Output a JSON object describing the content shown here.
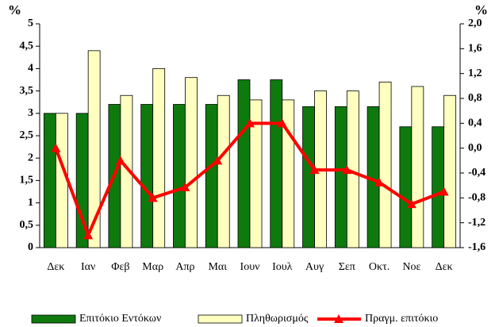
{
  "chart_data": {
    "type": "bar",
    "ylabel": "%",
    "y2label": "%",
    "categories": [
      "Δεκ",
      "Ιαν",
      "Φεβ",
      "Μαρ",
      "Απρ",
      "Μαι",
      "Ιουν",
      "Ιουλ",
      "Αυγ",
      "Σεπ",
      "Οκτ.",
      "Νοε",
      "Δεκ"
    ],
    "series": [
      {
        "name": "Επιτόκιο Εντόκων",
        "color": "#0e7a0e",
        "values": [
          3.0,
          3.0,
          3.2,
          3.2,
          3.2,
          3.2,
          3.75,
          3.75,
          3.15,
          3.15,
          3.15,
          2.7,
          2.7
        ]
      },
      {
        "name": "Πληθωρισμός",
        "color": "#ffffc0",
        "values": [
          3.0,
          4.4,
          3.4,
          4.0,
          3.8,
          3.4,
          3.3,
          3.3,
          3.5,
          3.5,
          3.7,
          3.6,
          3.4
        ]
      },
      {
        "name": "Πραγμ. επιτόκιο",
        "color": "#ff0000",
        "type": "line",
        "axis": "y2",
        "values": [
          0.0,
          -1.4,
          -0.2,
          -0.8,
          -0.63,
          -0.2,
          0.4,
          0.4,
          -0.35,
          -0.35,
          -0.55,
          -0.9,
          -0.7
        ]
      }
    ],
    "ylim": [
      0,
      5
    ],
    "yticks": [
      0,
      {
        "value": 0.5,
        "label": "0,5"
      },
      1,
      {
        "value": 1.5,
        "label": "1,5"
      },
      2,
      {
        "value": 2.5,
        "label": "2,5"
      },
      3,
      {
        "value": 3.5,
        "label": "3,5"
      },
      4,
      {
        "value": 4.5,
        "label": "4,5"
      },
      5
    ],
    "y2lim": [
      -1.6,
      2.0
    ],
    "y2ticks": [
      {
        "value": -1.6,
        "label": "-1,6"
      },
      {
        "value": -1.2,
        "label": "-1,2"
      },
      {
        "value": -0.8,
        "label": "-0,8"
      },
      {
        "value": -0.4,
        "label": "-0,4"
      },
      {
        "value": 0.0,
        "label": "0,0"
      },
      {
        "value": 0.4,
        "label": "0,4"
      },
      {
        "value": 0.8,
        "label": "0,8"
      },
      {
        "value": 1.2,
        "label": "1,2"
      },
      {
        "value": 1.6,
        "label": "1,6"
      },
      {
        "value": 2.0,
        "label": "2,0"
      }
    ],
    "legend": "bottom"
  }
}
